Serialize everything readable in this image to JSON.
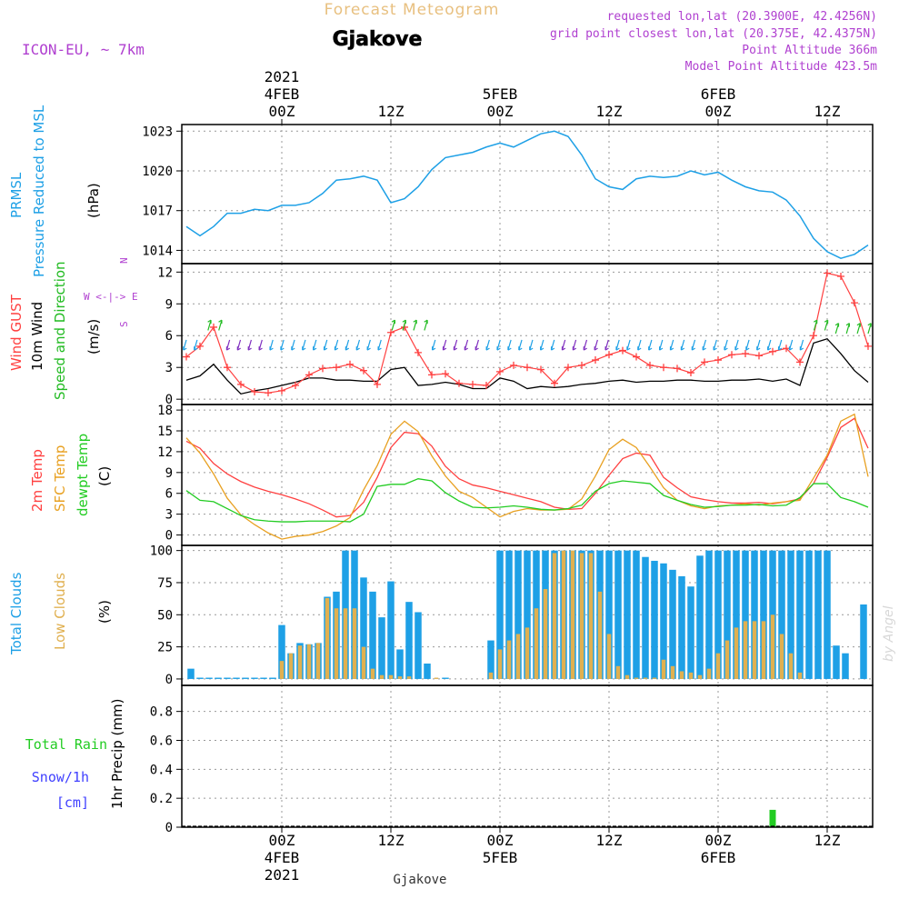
{
  "header": {
    "product": "Forecast Meteogram",
    "location": "Gjakove",
    "model": "ICON-EU, ~ 7km",
    "requested": "requested lon,lat (20.3900E, 42.4256N)",
    "grid_point": "grid point closest lon,lat (20.375E, 42.4375N)",
    "point_altitude": "Point Altitude 366m",
    "model_altitude": "Model Point Altitude 423.5m",
    "footer_location": "Gjakove",
    "watermark": "by Angel"
  },
  "time_axis": {
    "top": [
      {
        "hour": 0,
        "lines": [
          "2021",
          "4FEB",
          "00Z"
        ]
      },
      {
        "hour": 12,
        "lines": [
          "12Z"
        ]
      },
      {
        "hour": 24,
        "lines": [
          "5FEB",
          "00Z"
        ]
      },
      {
        "hour": 36,
        "lines": [
          "12Z"
        ]
      },
      {
        "hour": 48,
        "lines": [
          "6FEB",
          "00Z"
        ]
      },
      {
        "hour": 60,
        "lines": [
          "12Z"
        ]
      }
    ],
    "bottom": [
      {
        "hour": 0,
        "lines": [
          "00Z",
          "4FEB",
          "2021"
        ]
      },
      {
        "hour": 12,
        "lines": [
          "12Z"
        ]
      },
      {
        "hour": 24,
        "lines": [
          "00Z",
          "5FEB"
        ]
      },
      {
        "hour": 36,
        "lines": [
          "12Z"
        ]
      },
      {
        "hour": 48,
        "lines": [
          "00Z",
          "6FEB"
        ]
      },
      {
        "hour": 60,
        "lines": [
          "12Z"
        ]
      }
    ],
    "hour_range": [
      -11,
      65
    ]
  },
  "colors": {
    "pressure": "#1ea0e6",
    "gust": "#ff4040",
    "wind": "#000000",
    "wind_arrow_low": "#1ea0e6",
    "wind_arrow_mid": "#8030c0",
    "wind_arrow_high": "#22bb22",
    "temp": "#ff4040",
    "sfc_temp": "#e8a020",
    "dewpt": "#22cc22",
    "total_clouds": "#1ea0e6",
    "low_clouds": "#e0b050",
    "rain": "#22cc22",
    "snow": "#4040ff",
    "purple": "#b040d0",
    "title_gold": "#e8c080"
  },
  "chart_data": [
    {
      "type": "line",
      "name": "pressure",
      "title_lines": [
        "PRMSL",
        "Pressure Reduced to MSL"
      ],
      "ylabel": "(hPa)",
      "ylim": [
        1013,
        1023.5
      ],
      "yticks": [
        1014,
        1017,
        1020,
        1023
      ],
      "x_hours": [
        -10.5,
        -9,
        -7.5,
        -6,
        -4.5,
        -3,
        -1.5,
        0,
        1.5,
        3,
        4.5,
        6,
        7.5,
        9,
        10.5,
        12,
        13.5,
        15,
        16.5,
        18,
        19.5,
        21,
        22.5,
        24,
        25.5,
        27,
        28.5,
        30,
        31.5,
        33,
        34.5,
        36,
        37.5,
        39,
        40.5,
        42,
        43.5,
        45,
        46.5,
        48,
        49.5,
        51,
        52.5,
        54,
        55.5,
        57,
        58.5,
        60,
        61.5,
        63,
        64.5
      ],
      "series": [
        {
          "name": "PRMSL",
          "values": [
            1015.8,
            1015.1,
            1015.8,
            1016.8,
            1016.8,
            1017.1,
            1017.0,
            1017.4,
            1017.4,
            1017.6,
            1018.3,
            1019.3,
            1019.4,
            1019.6,
            1019.3,
            1017.6,
            1017.9,
            1018.8,
            1020.1,
            1021.0,
            1021.2,
            1021.4,
            1021.8,
            1022.1,
            1021.8,
            1022.3,
            1022.8,
            1023.0,
            1022.6,
            1021.2,
            1019.4,
            1018.8,
            1018.6,
            1019.4,
            1019.6,
            1019.5,
            1019.6,
            1020.0,
            1019.7,
            1019.9,
            1019.3,
            1018.8,
            1018.5,
            1018.4,
            1017.8,
            1016.6,
            1014.9,
            1013.9,
            1013.4,
            1013.7,
            1014.4
          ]
        }
      ]
    },
    {
      "type": "line",
      "name": "wind",
      "title_lines": [
        "Wind GUST",
        "10m Wind",
        "Speed and Direction"
      ],
      "ylabel": "(m/s)",
      "compass": [
        "N",
        "W <-|-> E",
        "S"
      ],
      "ylim": [
        -0.5,
        12.8
      ],
      "yticks": [
        0,
        3,
        6,
        9,
        12
      ],
      "x_hours": [
        -10.5,
        -9,
        -7.5,
        -6,
        -4.5,
        -3,
        -1.5,
        0,
        1.5,
        3,
        4.5,
        6,
        7.5,
        9,
        10.5,
        12,
        13.5,
        15,
        16.5,
        18,
        19.5,
        21,
        22.5,
        24,
        25.5,
        27,
        28.5,
        30,
        31.5,
        33,
        34.5,
        36,
        37.5,
        39,
        40.5,
        42,
        43.5,
        45,
        46.5,
        48,
        49.5,
        51,
        52.5,
        54,
        55.5,
        57,
        58.5,
        60,
        61.5,
        63,
        64.5
      ],
      "series": [
        {
          "name": "Wind GUST",
          "values": [
            4.0,
            5.0,
            6.8,
            3.0,
            1.4,
            0.7,
            0.6,
            0.8,
            1.3,
            2.3,
            2.9,
            3.0,
            3.3,
            2.7,
            1.4,
            6.3,
            6.8,
            4.4,
            2.3,
            2.4,
            1.5,
            1.4,
            1.3,
            2.6,
            3.2,
            3.0,
            2.8,
            1.5,
            3.0,
            3.2,
            3.7,
            4.2,
            4.6,
            4.0,
            3.2,
            3.0,
            2.9,
            2.5,
            3.5,
            3.7,
            4.2,
            4.3,
            4.1,
            4.5,
            4.8,
            3.5,
            6.0,
            11.9,
            11.6,
            9.1,
            5.0
          ]
        },
        {
          "name": "10m Wind",
          "values": [
            1.8,
            2.2,
            3.3,
            1.8,
            0.5,
            0.8,
            1.0,
            1.3,
            1.6,
            2.0,
            2.0,
            1.8,
            1.8,
            1.7,
            1.7,
            2.8,
            3.0,
            1.3,
            1.4,
            1.6,
            1.4,
            1.0,
            1.0,
            2.0,
            1.7,
            1.0,
            1.2,
            1.1,
            1.2,
            1.4,
            1.5,
            1.7,
            1.8,
            1.6,
            1.7,
            1.7,
            1.8,
            1.8,
            1.7,
            1.7,
            1.8,
            1.8,
            1.9,
            1.7,
            1.9,
            1.3,
            5.3,
            5.7,
            4.3,
            2.7,
            1.6
          ]
        }
      ],
      "arrow_count": 64
    },
    {
      "type": "line",
      "name": "temperature",
      "title_lines": [
        "2m Temp",
        "SFC Temp",
        "dewpt Temp"
      ],
      "ylabel": "(C)",
      "ylim": [
        -1.5,
        18.8
      ],
      "yticks": [
        0,
        3,
        6,
        9,
        12,
        15,
        18
      ],
      "x_hours": [
        -10.5,
        -9,
        -7.5,
        -6,
        -4.5,
        -3,
        -1.5,
        0,
        1.5,
        3,
        4.5,
        6,
        7.5,
        9,
        10.5,
        12,
        13.5,
        15,
        16.5,
        18,
        19.5,
        21,
        22.5,
        24,
        25.5,
        27,
        28.5,
        30,
        31.5,
        33,
        34.5,
        36,
        37.5,
        39,
        40.5,
        42,
        43.5,
        45,
        46.5,
        48,
        49.5,
        51,
        52.5,
        54,
        55.5,
        57,
        58.5,
        60,
        61.5,
        63,
        64.5
      ],
      "series": [
        {
          "name": "2m Temp",
          "values": [
            13.5,
            12.5,
            10.3,
            8.8,
            7.7,
            6.9,
            6.3,
            5.8,
            5.2,
            4.5,
            3.6,
            2.6,
            2.8,
            4.7,
            8.3,
            12.6,
            14.8,
            14.6,
            12.8,
            9.9,
            8.1,
            7.2,
            6.8,
            6.3,
            5.8,
            5.3,
            4.8,
            4.0,
            3.7,
            3.8,
            6.0,
            8.6,
            11.0,
            11.8,
            11.5,
            8.3,
            6.8,
            5.5,
            5.1,
            4.8,
            4.6,
            4.6,
            4.7,
            4.5,
            4.8,
            5.2,
            7.4,
            11.2,
            15.5,
            16.8,
            12.5
          ]
        },
        {
          "name": "SFC Temp",
          "values": [
            14.0,
            11.8,
            8.8,
            5.3,
            2.9,
            1.5,
            0.3,
            -0.6,
            -0.2,
            0.0,
            0.5,
            1.3,
            2.5,
            6.5,
            10.0,
            14.5,
            16.4,
            14.9,
            11.4,
            8.5,
            6.3,
            5.4,
            4.0,
            2.6,
            3.4,
            3.8,
            3.6,
            3.6,
            3.7,
            5.2,
            8.5,
            12.3,
            13.8,
            12.6,
            9.8,
            6.8,
            5.0,
            4.2,
            3.8,
            4.2,
            4.3,
            4.5,
            4.3,
            4.6,
            4.8,
            5.0,
            8.2,
            11.5,
            16.4,
            17.4,
            8.4
          ]
        },
        {
          "name": "dewpt Temp",
          "values": [
            6.4,
            5.0,
            4.8,
            3.8,
            2.8,
            2.2,
            2.0,
            1.9,
            1.9,
            2.0,
            2.0,
            2.0,
            1.9,
            3.0,
            7.0,
            7.3,
            7.3,
            8.1,
            7.8,
            6.1,
            4.9,
            4.0,
            3.9,
            4.0,
            4.2,
            4.0,
            3.7,
            3.6,
            3.8,
            4.3,
            6.3,
            7.4,
            7.8,
            7.6,
            7.4,
            5.7,
            5.0,
            4.4,
            4.0,
            4.1,
            4.3,
            4.3,
            4.4,
            4.2,
            4.3,
            5.4,
            7.4,
            7.4,
            5.4,
            4.8,
            4.0
          ]
        }
      ]
    },
    {
      "type": "bar",
      "name": "clouds",
      "title_lines": [
        "Total Clouds",
        "Low Clouds"
      ],
      "ylabel": "(%)",
      "ylim": [
        -5,
        104
      ],
      "yticks": [
        0,
        25,
        50,
        75,
        100
      ],
      "x_hours": [
        -10,
        -9,
        -8,
        -7,
        -6,
        -5,
        -4,
        -3,
        -2,
        -1,
        0,
        1,
        2,
        3,
        4,
        5,
        6,
        7,
        8,
        9,
        10,
        11,
        12,
        13,
        14,
        15,
        16,
        17,
        18,
        19,
        20,
        21,
        22,
        23,
        24,
        25,
        26,
        27,
        28,
        29,
        30,
        31,
        32,
        33,
        34,
        35,
        36,
        37,
        38,
        39,
        40,
        41,
        42,
        43,
        44,
        45,
        46,
        47,
        48,
        49,
        50,
        51,
        52,
        53,
        54,
        55,
        56,
        57,
        58,
        59,
        60,
        61,
        62,
        63,
        64
      ],
      "series": [
        {
          "name": "Total Clouds",
          "values": [
            8,
            1,
            1,
            1,
            1,
            1,
            1,
            1,
            1,
            1,
            42,
            20,
            28,
            27,
            28,
            64,
            68,
            100,
            100,
            79,
            68,
            48,
            76,
            23,
            60,
            52,
            12,
            0,
            1,
            0,
            0,
            0,
            0,
            30,
            100,
            100,
            100,
            100,
            100,
            100,
            100,
            100,
            100,
            100,
            100,
            100,
            100,
            100,
            100,
            100,
            95,
            92,
            90,
            85,
            80,
            72,
            96,
            100,
            100,
            100,
            100,
            100,
            100,
            100,
            100,
            100,
            100,
            100,
            100,
            100,
            100,
            26,
            20,
            0,
            58
          ]
        },
        {
          "name": "Low Clouds",
          "values": [
            0,
            0,
            0,
            0,
            0,
            0,
            0,
            0,
            0,
            0,
            14,
            20,
            26,
            27,
            28,
            63,
            55,
            55,
            55,
            25,
            8,
            3,
            3,
            2,
            2,
            0,
            0,
            1,
            0,
            0,
            0,
            0,
            0,
            5,
            23,
            30,
            35,
            40,
            55,
            70,
            98,
            100,
            100,
            98,
            98,
            68,
            35,
            10,
            3,
            1,
            1,
            1,
            15,
            10,
            6,
            5,
            3,
            8,
            20,
            30,
            40,
            45,
            45,
            45,
            50,
            35,
            20,
            5,
            0,
            0,
            0,
            0,
            0,
            0,
            0
          ]
        }
      ]
    },
    {
      "type": "bar",
      "name": "precipitation",
      "title_lines": [
        "Total Rain",
        "Snow/1h",
        "[cm]"
      ],
      "ylabel": "1hr Precip (mm)",
      "ylim": [
        0,
        0.98
      ],
      "yticks": [
        0,
        0.2,
        0.4,
        0.6,
        0.8
      ],
      "ytick_labels": [
        "0",
        "0.2",
        "0.4",
        "0.6",
        "0.8"
      ],
      "x_hours": [
        54
      ],
      "series": [
        {
          "name": "Total Rain",
          "values": [
            0.12
          ]
        }
      ]
    }
  ]
}
